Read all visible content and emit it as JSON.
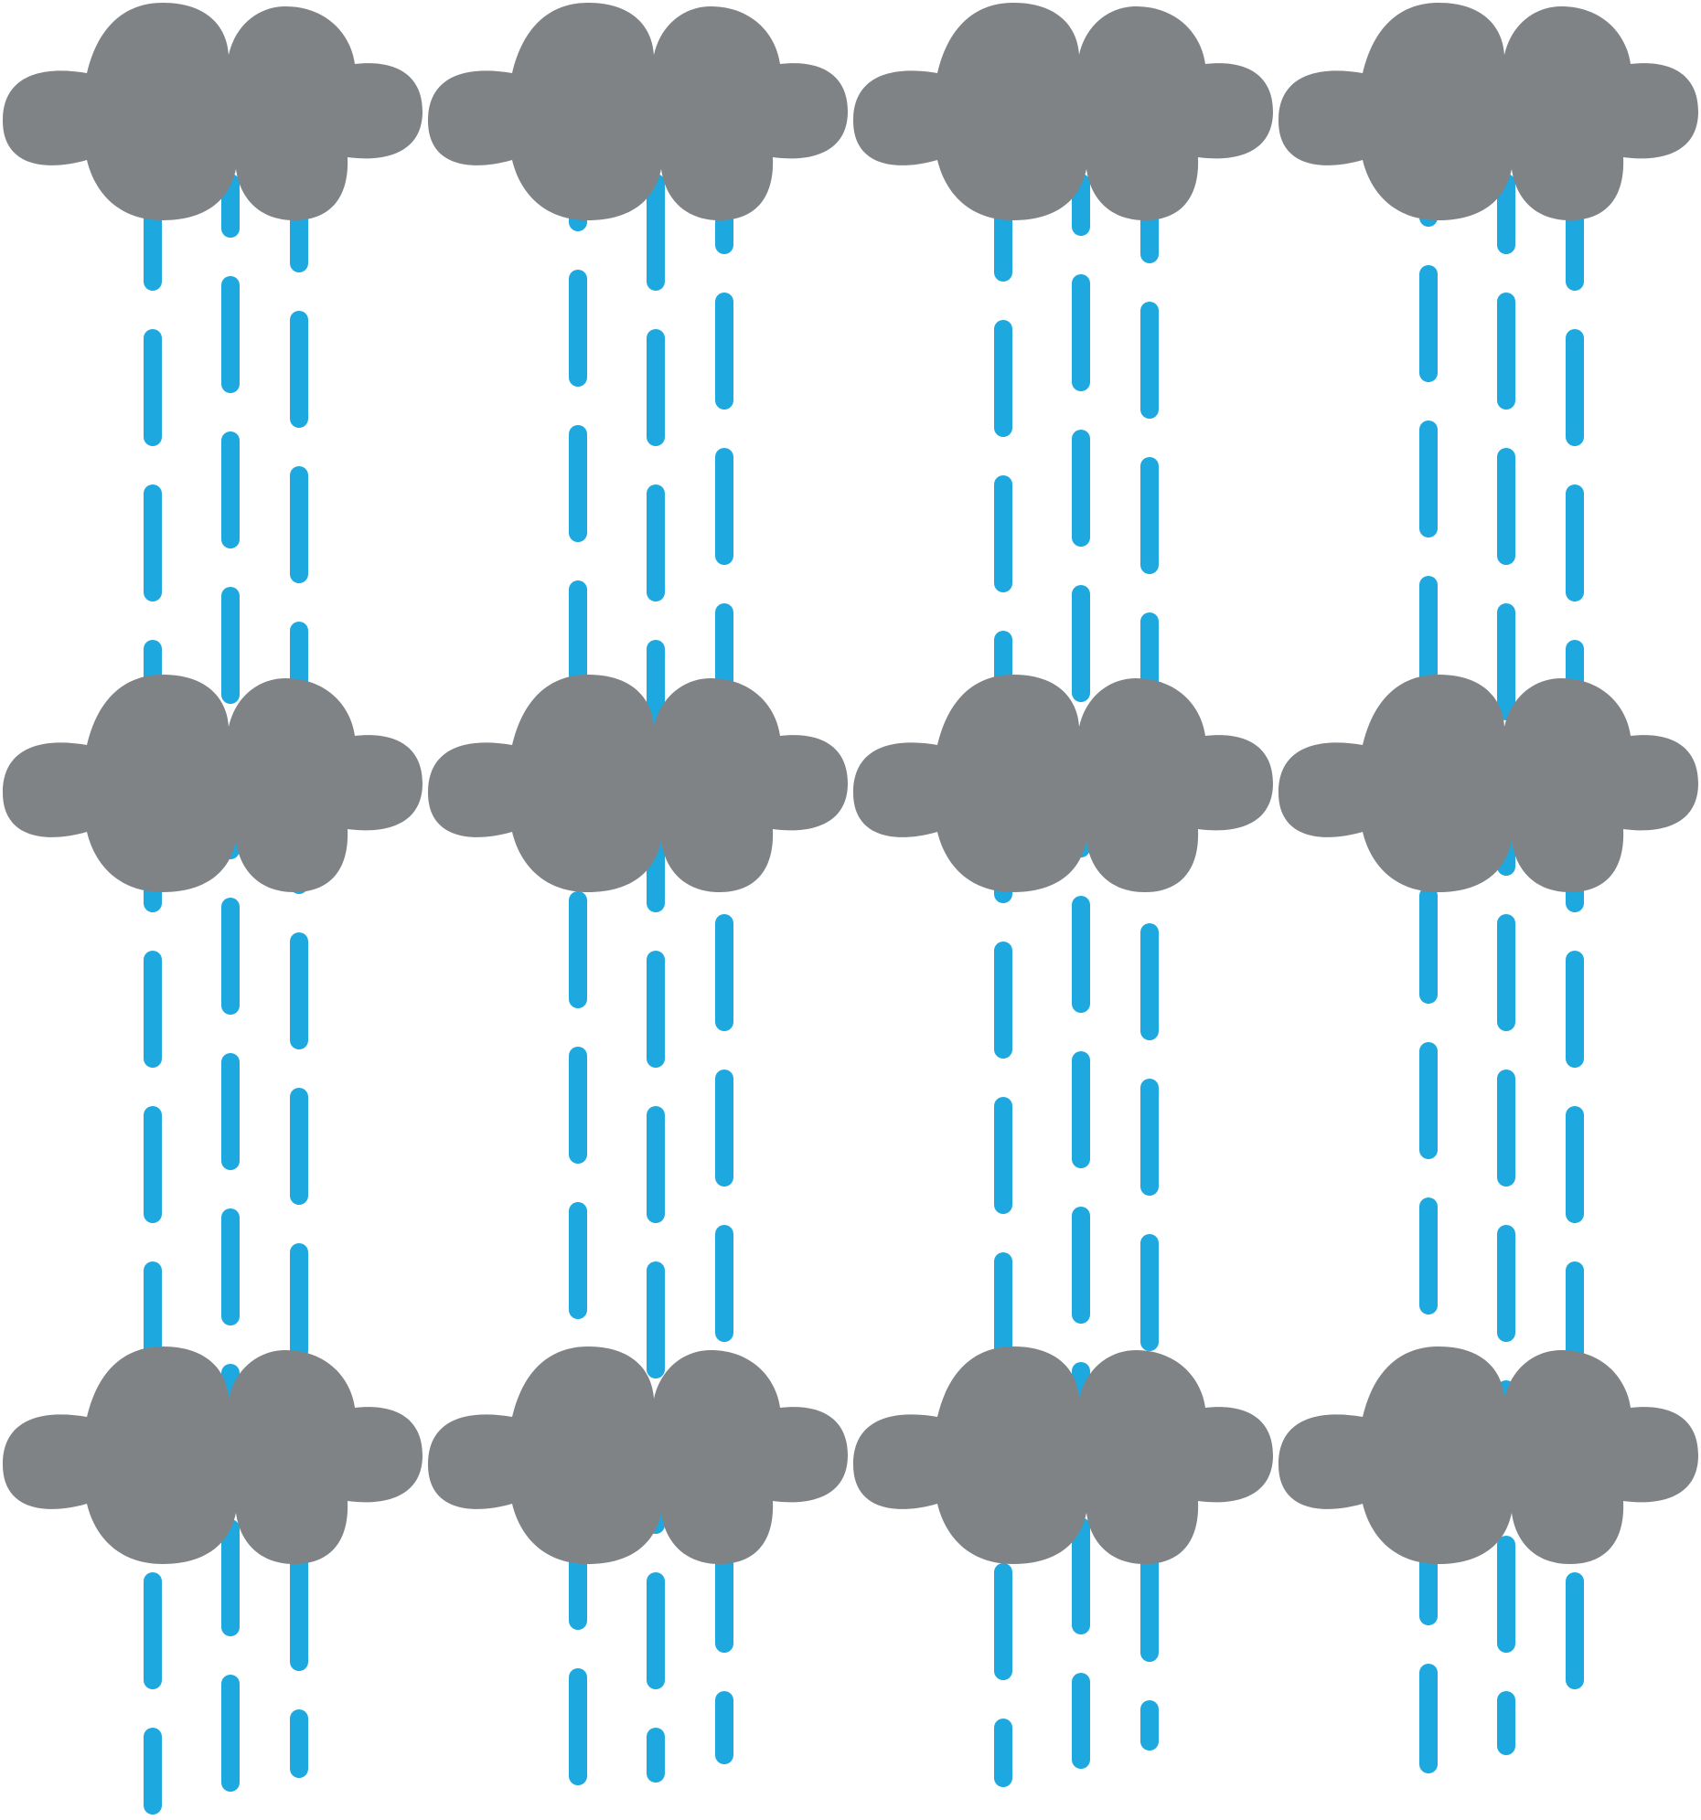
{
  "pattern": {
    "rows": 3,
    "columns": 4,
    "motif": "rain-cloud-icon"
  },
  "colors": {
    "background": "#ffffff",
    "cloud": "#808386",
    "rain": "#1ea8e0"
  }
}
